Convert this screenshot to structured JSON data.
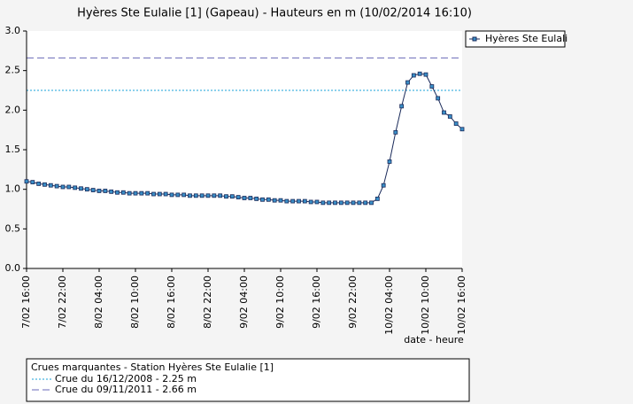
{
  "chart_data": {
    "type": "line",
    "title": "Hyères Ste Eulalie [1] (Gapeau) - Hauteurs en m (10/02/2014 16:10)",
    "x_label": "date - heure",
    "x": [
      0,
      1,
      2,
      3,
      4,
      5,
      6,
      7,
      8,
      9,
      10,
      11,
      12,
      13,
      14,
      15,
      16,
      17,
      18,
      19,
      20,
      21,
      22,
      23,
      24,
      25,
      26,
      27,
      28,
      29,
      30,
      31,
      32,
      33,
      34,
      35,
      36,
      37,
      38,
      39,
      40,
      41,
      42,
      43,
      44,
      45,
      46,
      47,
      48,
      49,
      50,
      51,
      52,
      53,
      54,
      55,
      56,
      57,
      58,
      59,
      60,
      61,
      62,
      63,
      64,
      65,
      66,
      67,
      68,
      69,
      70,
      71,
      72
    ],
    "series": [
      {
        "name": "Hyères Ste Eulali",
        "color": "#3a8fc7",
        "line_color": "#1a2a5a",
        "values": [
          1.1,
          1.09,
          1.07,
          1.06,
          1.05,
          1.04,
          1.03,
          1.03,
          1.02,
          1.01,
          1.0,
          0.99,
          0.98,
          0.98,
          0.97,
          0.96,
          0.96,
          0.95,
          0.95,
          0.95,
          0.95,
          0.94,
          0.94,
          0.94,
          0.93,
          0.93,
          0.93,
          0.92,
          0.92,
          0.92,
          0.92,
          0.92,
          0.92,
          0.91,
          0.91,
          0.9,
          0.89,
          0.89,
          0.88,
          0.87,
          0.87,
          0.86,
          0.86,
          0.85,
          0.85,
          0.85,
          0.85,
          0.84,
          0.84,
          0.83,
          0.83,
          0.83,
          0.83,
          0.83,
          0.83,
          0.83,
          0.83,
          0.83,
          0.88,
          1.05,
          1.35,
          1.72,
          2.05,
          2.35,
          2.44,
          2.46,
          2.45,
          2.3,
          2.15,
          1.97,
          1.92,
          1.83,
          1.76
        ]
      }
    ],
    "xlim": [
      0,
      72
    ],
    "xticks": [
      {
        "value": 0,
        "label": "7/02 16:00"
      },
      {
        "value": 6,
        "label": "7/02 22:00"
      },
      {
        "value": 12,
        "label": "8/02 04:00"
      },
      {
        "value": 18,
        "label": "8/02 10:00"
      },
      {
        "value": 24,
        "label": "8/02 16:00"
      },
      {
        "value": 30,
        "label": "8/02 22:00"
      },
      {
        "value": 36,
        "label": "9/02 04:00"
      },
      {
        "value": 42,
        "label": "9/02 10:00"
      },
      {
        "value": 48,
        "label": "9/02 16:00"
      },
      {
        "value": 54,
        "label": "9/02 22:00"
      },
      {
        "value": 60,
        "label": "10/02 04:00"
      },
      {
        "value": 66,
        "label": "10/02 10:00"
      },
      {
        "value": 72,
        "label": "10/02 16:00"
      }
    ],
    "ylim": [
      0,
      3
    ],
    "yticks": [
      {
        "value": 0,
        "label": "0.0"
      },
      0.5,
      {
        "value": 1,
        "label": "1.0"
      },
      1.5,
      {
        "value": 2,
        "label": "2.0"
      },
      2.5,
      {
        "value": 3,
        "label": "3.0"
      }
    ],
    "reference_title": "Crues marquantes - Station Hyères Ste Eulalie [1]",
    "reference_lines": [
      {
        "value": 2.25,
        "label": "Crue du 16/12/2008 - 2.25 m",
        "color": "#1aa0d8",
        "dash": "2,2"
      },
      {
        "value": 2.66,
        "label": "Crue du 09/11/2011 - 2.66 m",
        "color": "#6a6ab8",
        "dash": "8,4"
      }
    ]
  }
}
